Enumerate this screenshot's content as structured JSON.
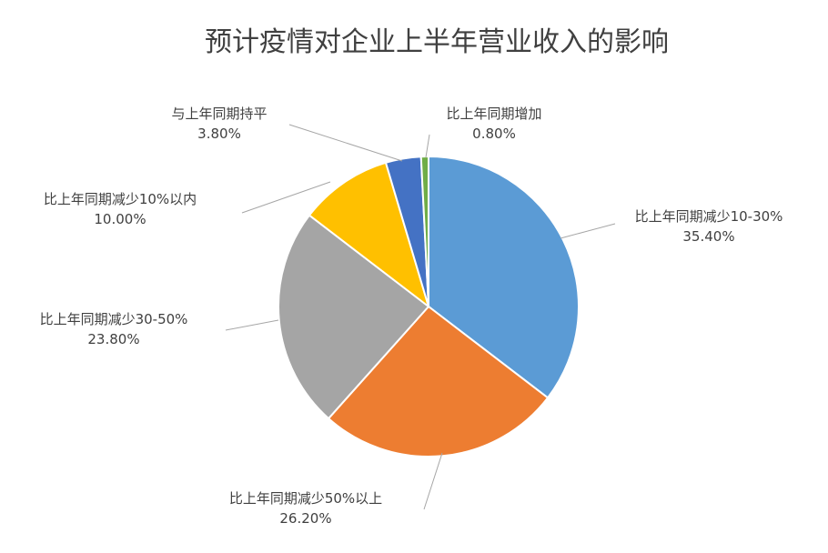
{
  "chart_data": {
    "type": "pie",
    "title": "预计疫情对企业上半年营业收入的影响",
    "slices": [
      {
        "label": "比上年同期减少10-30%",
        "value": 35.4,
        "display": "35.40%",
        "color": "#5b9bd5"
      },
      {
        "label": "比上年同期减少50%以上",
        "value": 26.2,
        "display": "26.20%",
        "color": "#ed7d31"
      },
      {
        "label": "比上年同期减少30-50%",
        "value": 23.8,
        "display": "23.80%",
        "color": "#a5a5a5"
      },
      {
        "label": "比上年同期减少10%以内",
        "value": 10.0,
        "display": "10.00%",
        "color": "#ffc000"
      },
      {
        "label": "与上年同期持平",
        "value": 3.8,
        "display": "3.80%",
        "color": "#4472c4"
      },
      {
        "label": "比上年同期增加",
        "value": 0.8,
        "display": "0.80%",
        "color": "#70ad47"
      }
    ],
    "start_angle": "12 o'clock",
    "direction": "clockwise",
    "legend": "none",
    "data_labels": "outside with leader lines"
  }
}
